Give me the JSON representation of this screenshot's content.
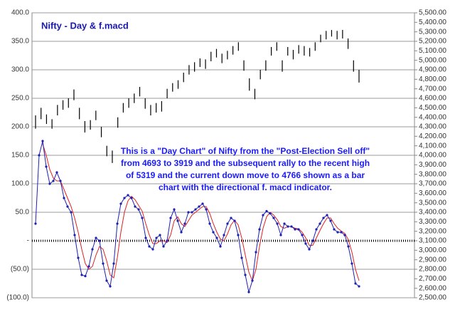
{
  "chart_data": {
    "type": "ohlc_macd",
    "title": "Nifty - Day & f.macd",
    "annotation": [
      "This is a \"Day Chart\" of Nifty from the \"Post-Election Sell off\"",
      "from 4693 to 3919 and the subsequent rally to the recent high",
      "of 5319 and the current down move to 4766 shown as a bar",
      "chart with the directional f. macd indicator."
    ],
    "ylim": [
      -100,
      400
    ],
    "yticks": [
      {
        "value": 400,
        "label": "400.0"
      },
      {
        "value": 350,
        "label": "350.0"
      },
      {
        "value": 300,
        "label": "300.0"
      },
      {
        "value": 250,
        "label": "250.0"
      },
      {
        "value": 200,
        "label": "200.0"
      },
      {
        "value": 150,
        "label": "150.0"
      },
      {
        "value": 100,
        "label": "100.0"
      },
      {
        "value": 50,
        "label": "50.0"
      },
      {
        "value": 0,
        "label": "-"
      },
      {
        "value": -50,
        "label": "(50.0)"
      },
      {
        "value": -100,
        "label": "(100.0)"
      }
    ],
    "y2lim": [
      2500,
      5500
    ],
    "y2ticks": [
      {
        "value": 5500,
        "label": "5,500.00"
      },
      {
        "value": 5400,
        "label": "5,400.00"
      },
      {
        "value": 5300,
        "label": "5,300.00"
      },
      {
        "value": 5200,
        "label": "5,200.00"
      },
      {
        "value": 5100,
        "label": "5,100.00"
      },
      {
        "value": 5000,
        "label": "5,000.00"
      },
      {
        "value": 4900,
        "label": "4,900.00"
      },
      {
        "value": 4800,
        "label": "4,800.00"
      },
      {
        "value": 4700,
        "label": "4,700.00"
      },
      {
        "value": 4600,
        "label": "4,600.00"
      },
      {
        "value": 4500,
        "label": "4,500.00"
      },
      {
        "value": 4400,
        "label": "4,400.00"
      },
      {
        "value": 4300,
        "label": "4,300.00"
      },
      {
        "value": 4200,
        "label": "4,200.00"
      },
      {
        "value": 4100,
        "label": "4,100.00"
      },
      {
        "value": 4000,
        "label": "4,000.00"
      },
      {
        "value": 3900,
        "label": "3,900.00"
      },
      {
        "value": 3800,
        "label": "3,800.00"
      },
      {
        "value": 3700,
        "label": "3,700.00"
      },
      {
        "value": 3600,
        "label": "3,600.00"
      },
      {
        "value": 3500,
        "label": "3,500.00"
      },
      {
        "value": 3400,
        "label": "3,400.00"
      },
      {
        "value": 3300,
        "label": "3,300.00"
      },
      {
        "value": 3200,
        "label": "3,200.00"
      },
      {
        "value": 3100,
        "label": "3,100.00"
      },
      {
        "value": 3000,
        "label": "3,000.00"
      },
      {
        "value": 2900,
        "label": "2,900.00"
      },
      {
        "value": 2800,
        "label": "2,800.00"
      },
      {
        "value": 2700,
        "label": "2,700.00"
      },
      {
        "value": 2600,
        "label": "2,600.00"
      },
      {
        "value": 2500,
        "label": "2,500.00"
      }
    ],
    "grid": true,
    "price": {
      "axis": "y2",
      "color": "#000000",
      "high": [
        4420,
        4500,
        4430,
        4380,
        4530,
        4580,
        4600,
        4693,
        4500,
        4360,
        4370,
        4470,
        4300,
        4100,
        4050,
        4400,
        4550,
        4600,
        4650,
        4720,
        4600,
        4530,
        4550,
        4570,
        4700,
        4760,
        4790,
        4870,
        4950,
        4980,
        5020,
        5010,
        5090,
        5120,
        5070,
        5100,
        5150,
        5190,
        5000,
        4810,
        4700,
        4900,
        5000,
        5140,
        5190,
        5000,
        5140,
        5110,
        5160,
        5150,
        5130,
        5190,
        5270,
        5310,
        5319,
        5310,
        5320,
        5230,
        5000,
        4900
      ],
      "low": [
        4280,
        4380,
        4330,
        4280,
        4420,
        4480,
        4500,
        4580,
        4380,
        4240,
        4270,
        4370,
        4190,
        3990,
        3919,
        4290,
        4450,
        4500,
        4550,
        4620,
        4490,
        4420,
        4450,
        4460,
        4600,
        4670,
        4700,
        4770,
        4850,
        4880,
        4930,
        4910,
        4990,
        5030,
        4970,
        5010,
        5060,
        5100,
        4890,
        4680,
        4590,
        4800,
        4890,
        5050,
        5100,
        4880,
        5050,
        5010,
        5070,
        5050,
        5040,
        5100,
        5190,
        5220,
        5250,
        5220,
        5230,
        5120,
        4880,
        4766
      ]
    },
    "series": [
      {
        "color": "#1f1fb4",
        "values": [
          30,
          150,
          175,
          130,
          100,
          105,
          120,
          105,
          75,
          60,
          50,
          10,
          -30,
          -60,
          -62,
          -45,
          -15,
          5,
          0,
          -40,
          -70,
          -80,
          -40,
          30,
          65,
          75,
          80,
          75,
          60,
          55,
          40,
          5,
          -10,
          -15,
          5,
          10,
          -10,
          0,
          40,
          55,
          35,
          15,
          30,
          50,
          50,
          55,
          60,
          65,
          55,
          30,
          15,
          5,
          -10,
          10,
          30,
          40,
          35,
          10,
          -30,
          -60,
          -90,
          -70,
          -20,
          20,
          45,
          52,
          48,
          40,
          30,
          10,
          30,
          25,
          25,
          20,
          20,
          10,
          -5,
          -15,
          0,
          20,
          30,
          40,
          45,
          35,
          20,
          15,
          15,
          10,
          -10,
          -40,
          -75,
          -80
        ]
      },
      {
        "color": "#e02020",
        "values": [
          null,
          null,
          170,
          150,
          125,
          110,
          105,
          105,
          90,
          75,
          60,
          40,
          15,
          -15,
          -40,
          -50,
          -45,
          -25,
          -10,
          -15,
          -35,
          -60,
          -65,
          -30,
          15,
          50,
          70,
          78,
          72,
          62,
          52,
          30,
          10,
          -5,
          -5,
          0,
          0,
          -3,
          10,
          35,
          42,
          30,
          25,
          35,
          45,
          50,
          55,
          60,
          60,
          48,
          30,
          15,
          3,
          0,
          12,
          28,
          36,
          28,
          5,
          -25,
          -55,
          -70,
          -50,
          -10,
          22,
          42,
          50,
          45,
          37,
          25,
          22,
          25,
          25,
          22,
          21,
          15,
          5,
          -8,
          -8,
          5,
          18,
          30,
          40,
          40,
          30,
          22,
          17,
          13,
          2,
          -20,
          -50,
          -70
        ]
      }
    ]
  }
}
